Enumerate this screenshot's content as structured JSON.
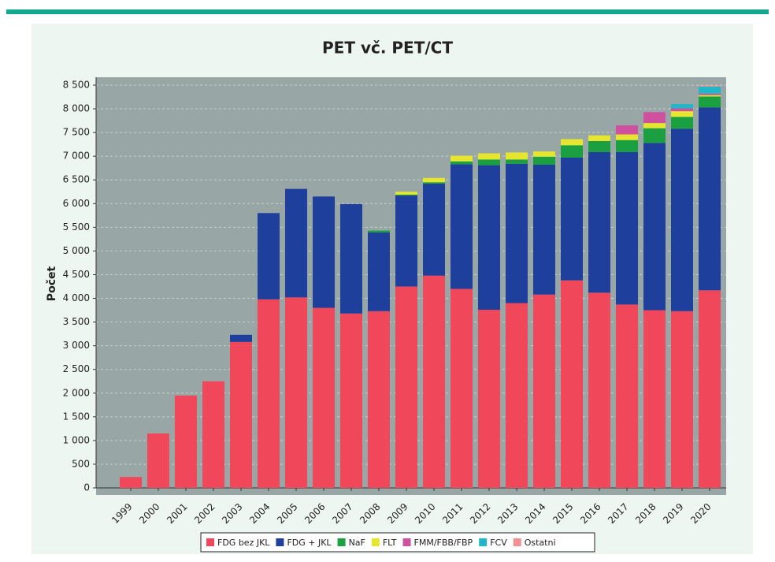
{
  "chart_data": {
    "type": "stacked_bar",
    "title": "PET vč. PET/CT",
    "y_label": "Počet",
    "categories": [
      "1999",
      "2000",
      "2001",
      "2002",
      "2003",
      "2004",
      "2005",
      "2006",
      "2007",
      "2008",
      "2009",
      "2010",
      "2011",
      "2012",
      "2013",
      "2014",
      "2015",
      "2016",
      "2017",
      "2018",
      "2019",
      "2020"
    ],
    "series": [
      {
        "name": "FDG bez JKL",
        "color": "#f0485a",
        "values": [
          230,
          1150,
          1950,
          2250,
          3080,
          3980,
          4020,
          3800,
          3680,
          3730,
          4250,
          4480,
          4200,
          3760,
          3900,
          4080,
          4380,
          4120,
          3870,
          3750,
          3730,
          4170
        ]
      },
      {
        "name": "FDG + JKL",
        "color": "#1e3f9c",
        "values": [
          0,
          0,
          0,
          0,
          150,
          1820,
          2290,
          2350,
          2310,
          1660,
          1920,
          1940,
          2630,
          3050,
          2940,
          2740,
          2590,
          2970,
          3220,
          3530,
          3850,
          3860
        ]
      },
      {
        "name": "NaF",
        "color": "#1aa040",
        "values": [
          0,
          0,
          0,
          0,
          0,
          0,
          0,
          0,
          0,
          40,
          20,
          30,
          60,
          120,
          90,
          170,
          260,
          230,
          250,
          310,
          250,
          230
        ]
      },
      {
        "name": "FLT",
        "color": "#e6e630",
        "values": [
          0,
          0,
          0,
          0,
          0,
          0,
          0,
          0,
          0,
          0,
          60,
          90,
          120,
          130,
          150,
          110,
          130,
          120,
          120,
          110,
          120,
          30
        ]
      },
      {
        "name": "FMM/FBB/FBP",
        "color": "#d050a0",
        "values": [
          0,
          0,
          0,
          0,
          0,
          0,
          0,
          0,
          0,
          0,
          0,
          0,
          0,
          0,
          0,
          0,
          0,
          0,
          190,
          230,
          60,
          30
        ]
      },
      {
        "name": "FCV",
        "color": "#20b8c8",
        "values": [
          0,
          0,
          0,
          0,
          0,
          0,
          0,
          0,
          0,
          0,
          0,
          0,
          0,
          0,
          0,
          0,
          0,
          0,
          0,
          0,
          90,
          150
        ]
      },
      {
        "name": "Ostatni",
        "color": "#f09090",
        "values": [
          0,
          0,
          0,
          0,
          0,
          0,
          0,
          0,
          0,
          0,
          0,
          0,
          0,
          0,
          0,
          0,
          0,
          0,
          0,
          0,
          0,
          20
        ]
      }
    ],
    "ylim": [
      0,
      8500
    ],
    "yticks": [
      0,
      500,
      {
        "value": 1000,
        "label": "1 000"
      },
      {
        "value": 1500,
        "label": "1 500"
      },
      {
        "value": 2000,
        "label": "2 000"
      },
      {
        "value": 2500,
        "label": "2 500"
      },
      {
        "value": 3000,
        "label": "3 000"
      },
      {
        "value": 3500,
        "label": "3 500"
      },
      {
        "value": 4000,
        "label": "4 000"
      },
      {
        "value": 4500,
        "label": "4 500"
      },
      {
        "value": 5000,
        "label": "5 000"
      },
      {
        "value": 5500,
        "label": "5 500"
      },
      {
        "value": 6000,
        "label": "6 000"
      },
      {
        "value": 6500,
        "label": "6 500"
      },
      {
        "value": 7000,
        "label": "7 000"
      },
      {
        "value": 7500,
        "label": "7 500"
      },
      {
        "value": 8000,
        "label": "8 000"
      },
      {
        "value": 8500,
        "label": "8 500"
      }
    ],
    "grid": true
  }
}
